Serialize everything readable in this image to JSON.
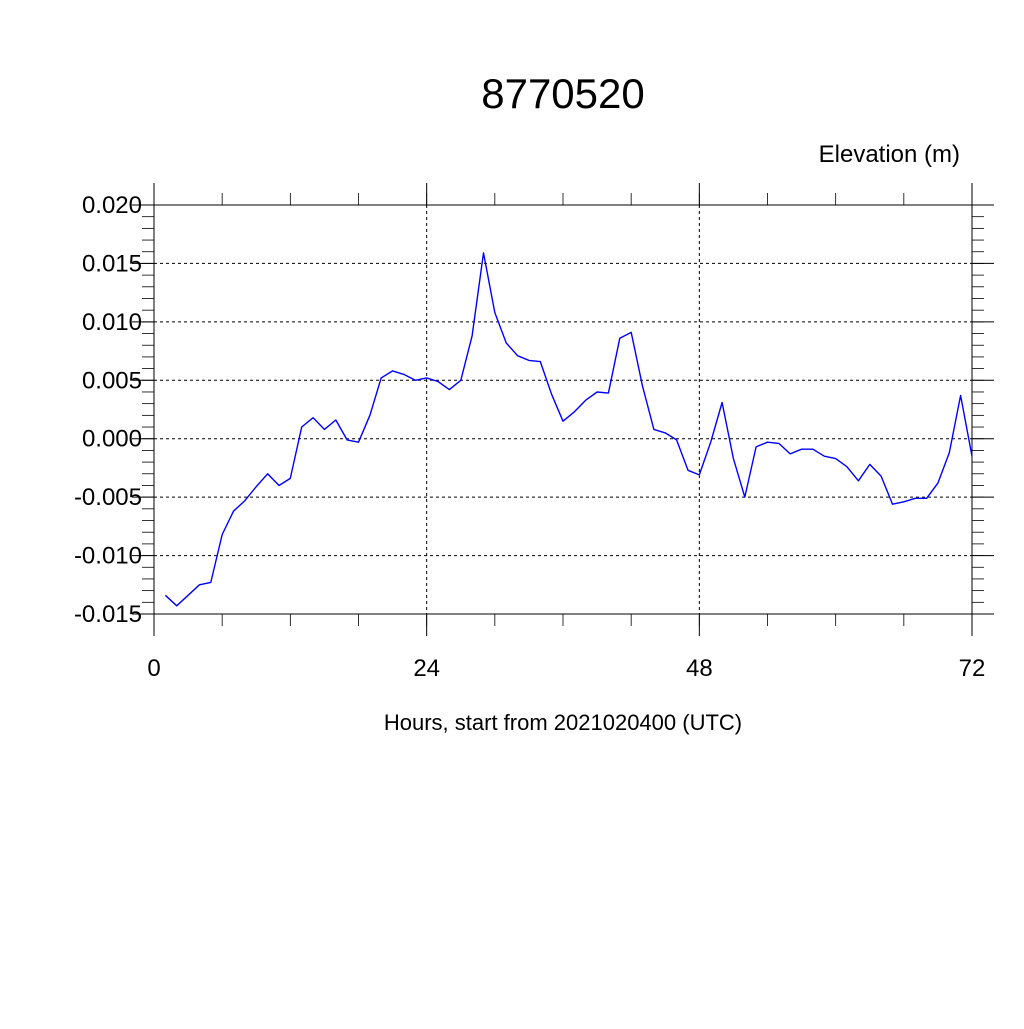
{
  "chart_data": {
    "type": "line",
    "title": "8770520",
    "ylabel": "Elevation (m)",
    "xlabel": "Hours, start from 2021020400 (UTC)",
    "xlim": [
      0,
      72
    ],
    "ylim": [
      -0.015,
      0.02
    ],
    "x_ticks": [
      0,
      24,
      48,
      72
    ],
    "x_tick_labels": [
      "0",
      "24",
      "48",
      "72"
    ],
    "y_ticks": [
      -0.015,
      -0.01,
      -0.005,
      0.0,
      0.005,
      0.01,
      0.015,
      0.02
    ],
    "y_tick_labels": [
      "-0.015",
      "-0.010",
      "-0.005",
      "0.000",
      "0.005",
      "0.010",
      "0.015",
      "0.020"
    ],
    "grid": true,
    "series_color": "#0000ff",
    "series": [
      {
        "x": [
          1,
          2,
          3,
          4,
          5,
          6,
          7,
          8,
          9,
          10,
          11,
          12,
          13,
          14,
          15,
          16,
          17,
          18,
          19,
          20,
          21,
          22,
          23,
          24,
          25,
          26,
          27,
          28,
          29,
          30,
          31,
          32,
          33,
          34,
          35,
          36,
          37,
          38,
          39,
          40,
          41,
          42,
          43,
          44,
          45,
          46,
          47,
          48,
          49,
          50,
          51,
          52,
          53,
          54,
          55,
          56,
          57,
          58,
          59,
          60,
          61,
          62,
          63,
          64,
          65,
          66,
          67,
          68,
          69,
          70,
          71,
          72
        ],
        "values": [
          -0.0134,
          -0.0143,
          -0.0134,
          -0.0125,
          -0.0123,
          -0.0082,
          -0.0062,
          -0.0053,
          -0.0041,
          -0.003,
          -0.004,
          -0.0034,
          0.001,
          0.0018,
          0.0008,
          0.0016,
          -0.0001,
          -0.0003,
          0.002,
          0.0052,
          0.0058,
          0.0055,
          0.005,
          0.0052,
          0.0049,
          0.0042,
          0.005,
          0.0088,
          0.0159,
          0.0108,
          0.0082,
          0.0071,
          0.0067,
          0.0066,
          0.0038,
          0.0015,
          0.0023,
          0.0033,
          0.004,
          0.0039,
          0.0086,
          0.0091,
          0.0045,
          0.0008,
          0.0005,
          -0.0001,
          -0.0027,
          -0.0031,
          -0.0003,
          0.0031,
          -0.0017,
          -0.005,
          -0.0007,
          -0.0003,
          -0.0004,
          -0.0013,
          -0.0009,
          -0.0009,
          -0.0015,
          -0.0017,
          -0.0024,
          -0.0036,
          -0.0022,
          -0.0032,
          -0.0056,
          -0.0054,
          -0.0051,
          -0.0051,
          -0.0038,
          -0.0012,
          0.0037,
          -0.0015
        ]
      }
    ]
  }
}
